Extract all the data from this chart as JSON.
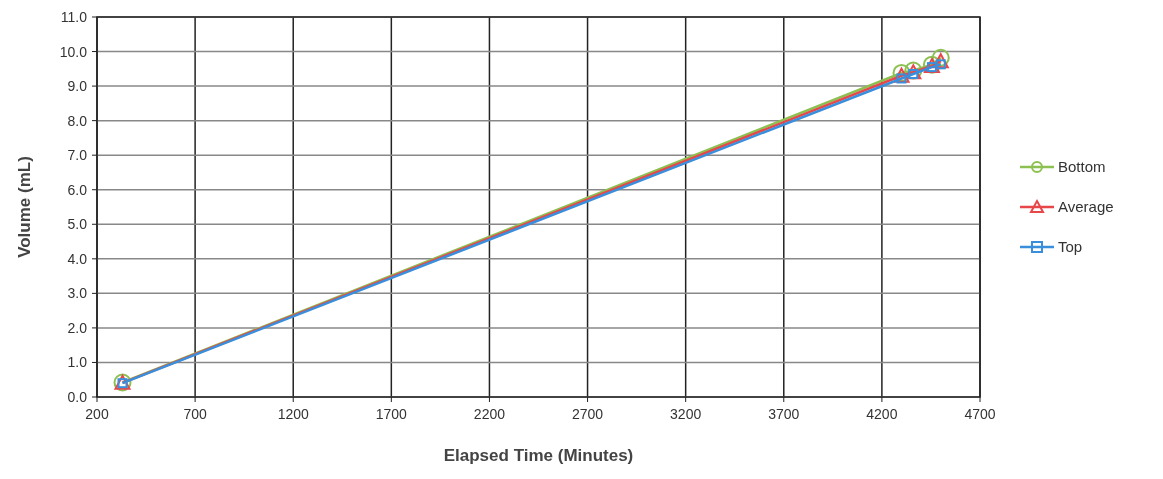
{
  "chart_data": {
    "type": "line",
    "xlabel": "Elapsed Time (Minutes)",
    "ylabel": "Volume (mL)",
    "x": [
      330,
      4300,
      4360,
      4455,
      4500
    ],
    "series": [
      {
        "name": "Bottom",
        "color": "#8cc152",
        "marker": "circle",
        "values": [
          0.42,
          9.38,
          9.45,
          9.62,
          9.82
        ]
      },
      {
        "name": "Average",
        "color": "#e8474a",
        "marker": "triangle",
        "values": [
          0.41,
          9.3,
          9.4,
          9.58,
          9.72
        ]
      },
      {
        "name": "Top",
        "color": "#3a8fdc",
        "marker": "square",
        "values": [
          0.4,
          9.22,
          9.35,
          9.55,
          9.63
        ]
      }
    ],
    "xlim": [
      200,
      4700
    ],
    "xticks": [
      200,
      700,
      1200,
      1700,
      2200,
      2700,
      3200,
      3700,
      4200,
      4700
    ],
    "ylim": [
      0,
      11
    ],
    "yticks": [
      {
        "value": 0,
        "label": "0.0"
      },
      {
        "value": 1,
        "label": "1.0"
      },
      {
        "value": 2,
        "label": "2.0"
      },
      {
        "value": 3,
        "label": "3.0"
      },
      {
        "value": 4,
        "label": "4.0"
      },
      {
        "value": 5,
        "label": "5.0"
      },
      {
        "value": 6,
        "label": "6.0"
      },
      {
        "value": 7,
        "label": "7.0"
      },
      {
        "value": 8,
        "label": "8.0"
      },
      {
        "value": 9,
        "label": "9.0"
      },
      {
        "value": 10,
        "label": "10.0"
      },
      {
        "value": 11,
        "label": "11.0"
      }
    ],
    "grid": true,
    "legend": "right"
  }
}
